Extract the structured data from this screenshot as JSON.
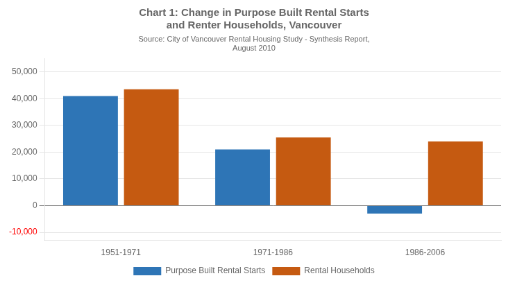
{
  "chart_data": {
    "type": "bar",
    "title": [
      "Chart 1: Change in Purpose Built Rental Starts",
      "and Renter Households, Vancouver"
    ],
    "subtitle": [
      "Source: City of Vancouver Rental Housing Study - Synthesis Report,",
      "August 2010"
    ],
    "categories": [
      "1951-1971",
      "1971-1986",
      "1986-2006"
    ],
    "series": [
      {
        "name": "Purpose Built Rental Starts",
        "color": "#2E75B6",
        "values": [
          41000,
          21000,
          -3000
        ]
      },
      {
        "name": "Rental Households",
        "color": "#C55A11",
        "values": [
          43500,
          25500,
          24000
        ]
      }
    ],
    "ylim": [
      -13000,
      55000
    ],
    "yticks": [
      {
        "value": -10000,
        "label": "-10,000"
      },
      0,
      {
        "value": 10000,
        "label": "10,000"
      },
      {
        "value": 20000,
        "label": "20,000"
      },
      {
        "value": 30000,
        "label": "30,000"
      },
      {
        "value": 40000,
        "label": "40,000"
      },
      {
        "value": 50000,
        "label": "50,000"
      }
    ],
    "grid": true,
    "legend": "bottom"
  }
}
